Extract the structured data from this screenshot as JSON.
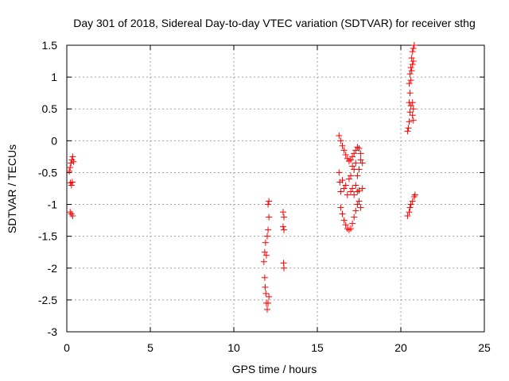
{
  "chart_data": {
    "type": "scatter",
    "title": "Day 301 of 2018, Sidereal Day-to-day VTEC variation (SDTVAR) for receiver sthg",
    "xlabel": "GPS time / hours",
    "ylabel": "SDTVAR / TECUs",
    "xlim": [
      0,
      25
    ],
    "ylim": [
      -3,
      1.5
    ],
    "xticks": [
      0,
      5,
      10,
      15,
      20,
      25
    ],
    "xtick_labels": [
      "0",
      "5",
      "10",
      "15",
      "20",
      "25"
    ],
    "yticks": [
      1.5,
      1,
      0.5,
      0,
      -0.5,
      -1,
      -1.5,
      -2,
      -2.5,
      -3
    ],
    "ytick_labels": [
      "1.5",
      "1",
      "0.5",
      "0",
      "-0.5",
      "-1",
      "-1.5",
      "-2",
      "-2.5",
      "-3"
    ],
    "grid": true,
    "marker": "+",
    "marker_color": "#ff0000",
    "series": [
      {
        "points": [
          [
            0.15,
            -0.48
          ],
          [
            0.2,
            -0.42
          ],
          [
            0.25,
            -0.35
          ],
          [
            0.3,
            -0.3
          ],
          [
            0.35,
            -0.25
          ],
          [
            0.4,
            -0.33
          ],
          [
            0.22,
            -0.66
          ],
          [
            0.28,
            -0.7
          ],
          [
            0.33,
            -0.65
          ],
          [
            0.2,
            -1.12
          ],
          [
            0.27,
            -1.15
          ],
          [
            0.35,
            -1.18
          ],
          [
            11.8,
            -1.9
          ],
          [
            11.85,
            -1.75
          ],
          [
            11.9,
            -1.6
          ],
          [
            11.95,
            -1.8
          ],
          [
            12.0,
            -1.5
          ],
          [
            12.05,
            -1.4
          ],
          [
            12.1,
            -1.2
          ],
          [
            12.05,
            -1.0
          ],
          [
            12.1,
            -0.95
          ],
          [
            11.85,
            -2.15
          ],
          [
            11.88,
            -2.3
          ],
          [
            11.92,
            -2.4
          ],
          [
            11.95,
            -2.55
          ],
          [
            12.0,
            -2.65
          ],
          [
            12.05,
            -2.55
          ],
          [
            12.1,
            -2.45
          ],
          [
            12.95,
            -1.12
          ],
          [
            13.0,
            -1.2
          ],
          [
            12.95,
            -1.35
          ],
          [
            13.0,
            -1.4
          ],
          [
            12.98,
            -1.92
          ],
          [
            13.0,
            -2.0
          ],
          [
            16.3,
            0.08
          ],
          [
            16.4,
            0.0
          ],
          [
            16.5,
            -0.08
          ],
          [
            16.6,
            -0.15
          ],
          [
            16.7,
            -0.22
          ],
          [
            16.8,
            -0.28
          ],
          [
            16.9,
            -0.32
          ],
          [
            17.0,
            -0.3
          ],
          [
            17.1,
            -0.25
          ],
          [
            17.2,
            -0.2
          ],
          [
            17.3,
            -0.15
          ],
          [
            17.4,
            -0.1
          ],
          [
            17.5,
            -0.12
          ],
          [
            17.6,
            -0.2
          ],
          [
            16.3,
            -0.5
          ],
          [
            16.35,
            -0.65
          ],
          [
            16.4,
            -0.8
          ],
          [
            16.5,
            -0.62
          ],
          [
            16.6,
            -0.75
          ],
          [
            16.7,
            -0.7
          ],
          [
            16.8,
            -0.85
          ],
          [
            16.9,
            -0.6
          ],
          [
            17.0,
            -0.55
          ],
          [
            17.1,
            -0.4
          ],
          [
            17.2,
            -0.45
          ],
          [
            17.3,
            -0.35
          ],
          [
            17.4,
            -0.55
          ],
          [
            17.5,
            -0.45
          ],
          [
            17.6,
            -0.3
          ],
          [
            17.7,
            -0.35
          ],
          [
            16.4,
            -1.05
          ],
          [
            16.5,
            -1.15
          ],
          [
            16.6,
            -1.25
          ],
          [
            16.7,
            -1.32
          ],
          [
            16.8,
            -1.38
          ],
          [
            16.9,
            -1.4
          ],
          [
            17.0,
            -1.38
          ],
          [
            17.1,
            -1.3
          ],
          [
            17.2,
            -1.2
          ],
          [
            17.3,
            -1.1
          ],
          [
            17.4,
            -1.0
          ],
          [
            17.5,
            -0.95
          ],
          [
            17.6,
            -1.05
          ],
          [
            17.7,
            -0.75
          ],
          [
            17.0,
            -0.8
          ],
          [
            17.1,
            -0.75
          ],
          [
            17.2,
            -0.85
          ],
          [
            17.3,
            -0.7
          ],
          [
            17.4,
            -0.8
          ],
          [
            17.5,
            -0.78
          ],
          [
            20.4,
            -1.18
          ],
          [
            20.5,
            -1.12
          ],
          [
            20.55,
            -1.05
          ],
          [
            20.6,
            -1.0
          ],
          [
            20.7,
            -0.95
          ],
          [
            20.8,
            -0.88
          ],
          [
            20.85,
            -0.85
          ],
          [
            20.4,
            0.15
          ],
          [
            20.45,
            0.2
          ],
          [
            20.5,
            0.3
          ],
          [
            20.55,
            0.45
          ],
          [
            20.5,
            0.6
          ],
          [
            20.55,
            0.75
          ],
          [
            20.5,
            0.9
          ],
          [
            20.55,
            1.05
          ],
          [
            20.6,
            1.15
          ],
          [
            20.65,
            1.3
          ],
          [
            20.7,
            1.4
          ],
          [
            20.75,
            1.45
          ],
          [
            20.8,
            1.5
          ],
          [
            20.6,
            0.55
          ],
          [
            20.7,
            0.6
          ],
          [
            20.75,
            0.5
          ],
          [
            20.7,
            0.4
          ],
          [
            20.75,
            0.32
          ],
          [
            20.65,
            1.1
          ],
          [
            20.7,
            1.2
          ],
          [
            20.75,
            1.25
          ],
          [
            20.6,
            0.95
          ]
        ]
      }
    ]
  }
}
